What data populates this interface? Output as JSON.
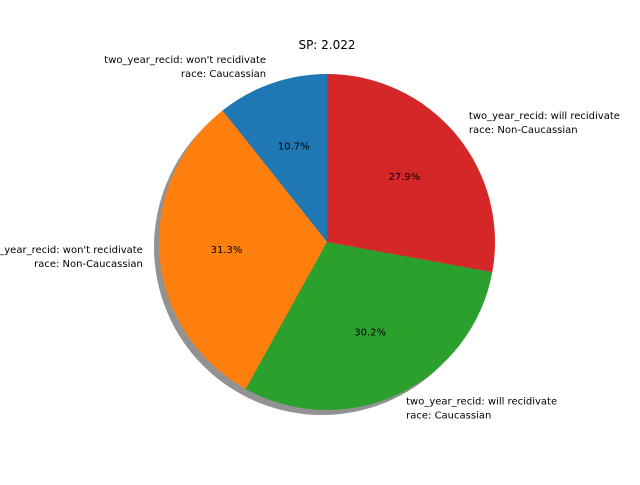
{
  "chart_data": {
    "type": "pie",
    "title": "SP: 2.022",
    "shadow": true,
    "start_angle_deg": 90,
    "direction": "counterclockwise",
    "slices": [
      {
        "label_lines": [
          "two_year_recid: won't recidivate",
          "race: Caucassian"
        ],
        "value": 10.7,
        "pct_label": "10.7%",
        "color": "#1f77b4"
      },
      {
        "label_lines": [
          "two_year_recid: won't recidivate",
          "race: Non-Caucassian"
        ],
        "value": 31.3,
        "pct_label": "31.3%",
        "color": "#ff7f0e"
      },
      {
        "label_lines": [
          "two_year_recid: will recidivate",
          "race: Caucassian"
        ],
        "value": 30.2,
        "pct_label": "30.2%",
        "color": "#2ca02c"
      },
      {
        "label_lines": [
          "two_year_recid: will recidivate",
          "race: Non-Caucassian"
        ],
        "value": 27.9,
        "pct_label": "27.9%",
        "color": "#d62728"
      }
    ]
  }
}
